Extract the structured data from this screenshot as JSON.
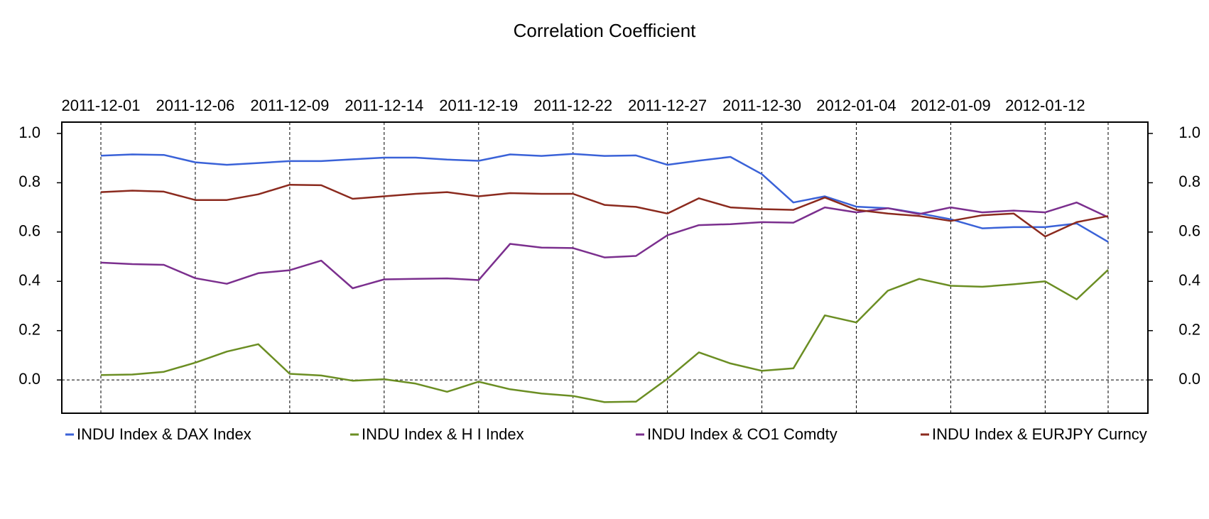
{
  "chart_data": {
    "type": "line",
    "title": "Correlation Coefficient",
    "categories": [
      "2011-12-01",
      null,
      null,
      "2011-12-06",
      null,
      null,
      "2011-12-09",
      null,
      null,
      "2011-12-14",
      null,
      null,
      "2011-12-19",
      null,
      null,
      "2011-12-22",
      null,
      null,
      "2011-12-27",
      null,
      null,
      "2011-12-30",
      null,
      null,
      "2012-01-04",
      null,
      null,
      "2012-01-09",
      null,
      null,
      "2012-01-12",
      null,
      null
    ],
    "series": [
      {
        "name": "INDU Index & DAX Index",
        "color": "#3a62d8",
        "values": [
          0.91,
          0.915,
          0.913,
          0.883,
          0.873,
          0.88,
          0.888,
          0.888,
          0.895,
          0.902,
          0.902,
          0.894,
          0.889,
          0.915,
          0.909,
          0.917,
          0.909,
          0.911,
          0.873,
          0.89,
          0.905,
          0.835,
          0.72,
          0.745,
          0.703,
          0.697,
          0.676,
          0.652,
          0.615,
          0.62,
          0.62,
          0.635,
          0.56
        ]
      },
      {
        "name": "INDU Index & H I Index",
        "color": "#6b8e23",
        "values": [
          0.02,
          0.022,
          0.033,
          0.07,
          0.115,
          0.145,
          0.025,
          0.018,
          -0.003,
          0.003,
          -0.015,
          -0.048,
          -0.007,
          -0.038,
          -0.055,
          -0.065,
          -0.09,
          -0.088,
          0.005,
          0.112,
          0.067,
          0.037,
          0.047,
          0.262,
          0.233,
          0.362,
          0.41,
          0.382,
          0.378,
          0.388,
          0.4,
          0.327,
          0.447
        ]
      },
      {
        "name": "INDU Index & CO1 Comdty",
        "color": "#7b2f8e",
        "values": [
          0.476,
          0.47,
          0.467,
          0.413,
          0.39,
          0.433,
          0.445,
          0.484,
          0.372,
          0.408,
          0.41,
          0.412,
          0.405,
          0.552,
          0.537,
          0.535,
          0.497,
          0.503,
          0.587,
          0.628,
          0.632,
          0.64,
          0.638,
          0.7,
          0.68,
          0.697,
          0.673,
          0.7,
          0.68,
          0.687,
          0.68,
          0.72,
          0.66
        ]
      },
      {
        "name": "INDU Index & EURJPY Curncy",
        "color": "#8b2a1e",
        "values": [
          0.762,
          0.768,
          0.764,
          0.73,
          0.73,
          0.753,
          0.792,
          0.79,
          0.735,
          0.745,
          0.755,
          0.762,
          0.745,
          0.758,
          0.755,
          0.755,
          0.71,
          0.702,
          0.675,
          0.737,
          0.7,
          0.693,
          0.69,
          0.74,
          0.69,
          0.675,
          0.665,
          0.645,
          0.668,
          0.675,
          0.582,
          0.64,
          0.665
        ]
      }
    ],
    "ylim": [
      -0.135,
      1.046
    ],
    "yticks": [
      {
        "value": 0,
        "label": "0.0"
      },
      0.2,
      0.4,
      0.6,
      0.8,
      {
        "value": 1,
        "label": "1.0"
      }
    ],
    "y2lim": [
      -0.135,
      1.046
    ],
    "y2ticks": [
      {
        "value": 0,
        "label": "0.0"
      },
      0.2,
      0.4,
      0.6,
      0.8,
      {
        "value": 1,
        "label": "1.0"
      }
    ],
    "zero_line": true,
    "vertical_grid": true,
    "legend": "bottom"
  }
}
